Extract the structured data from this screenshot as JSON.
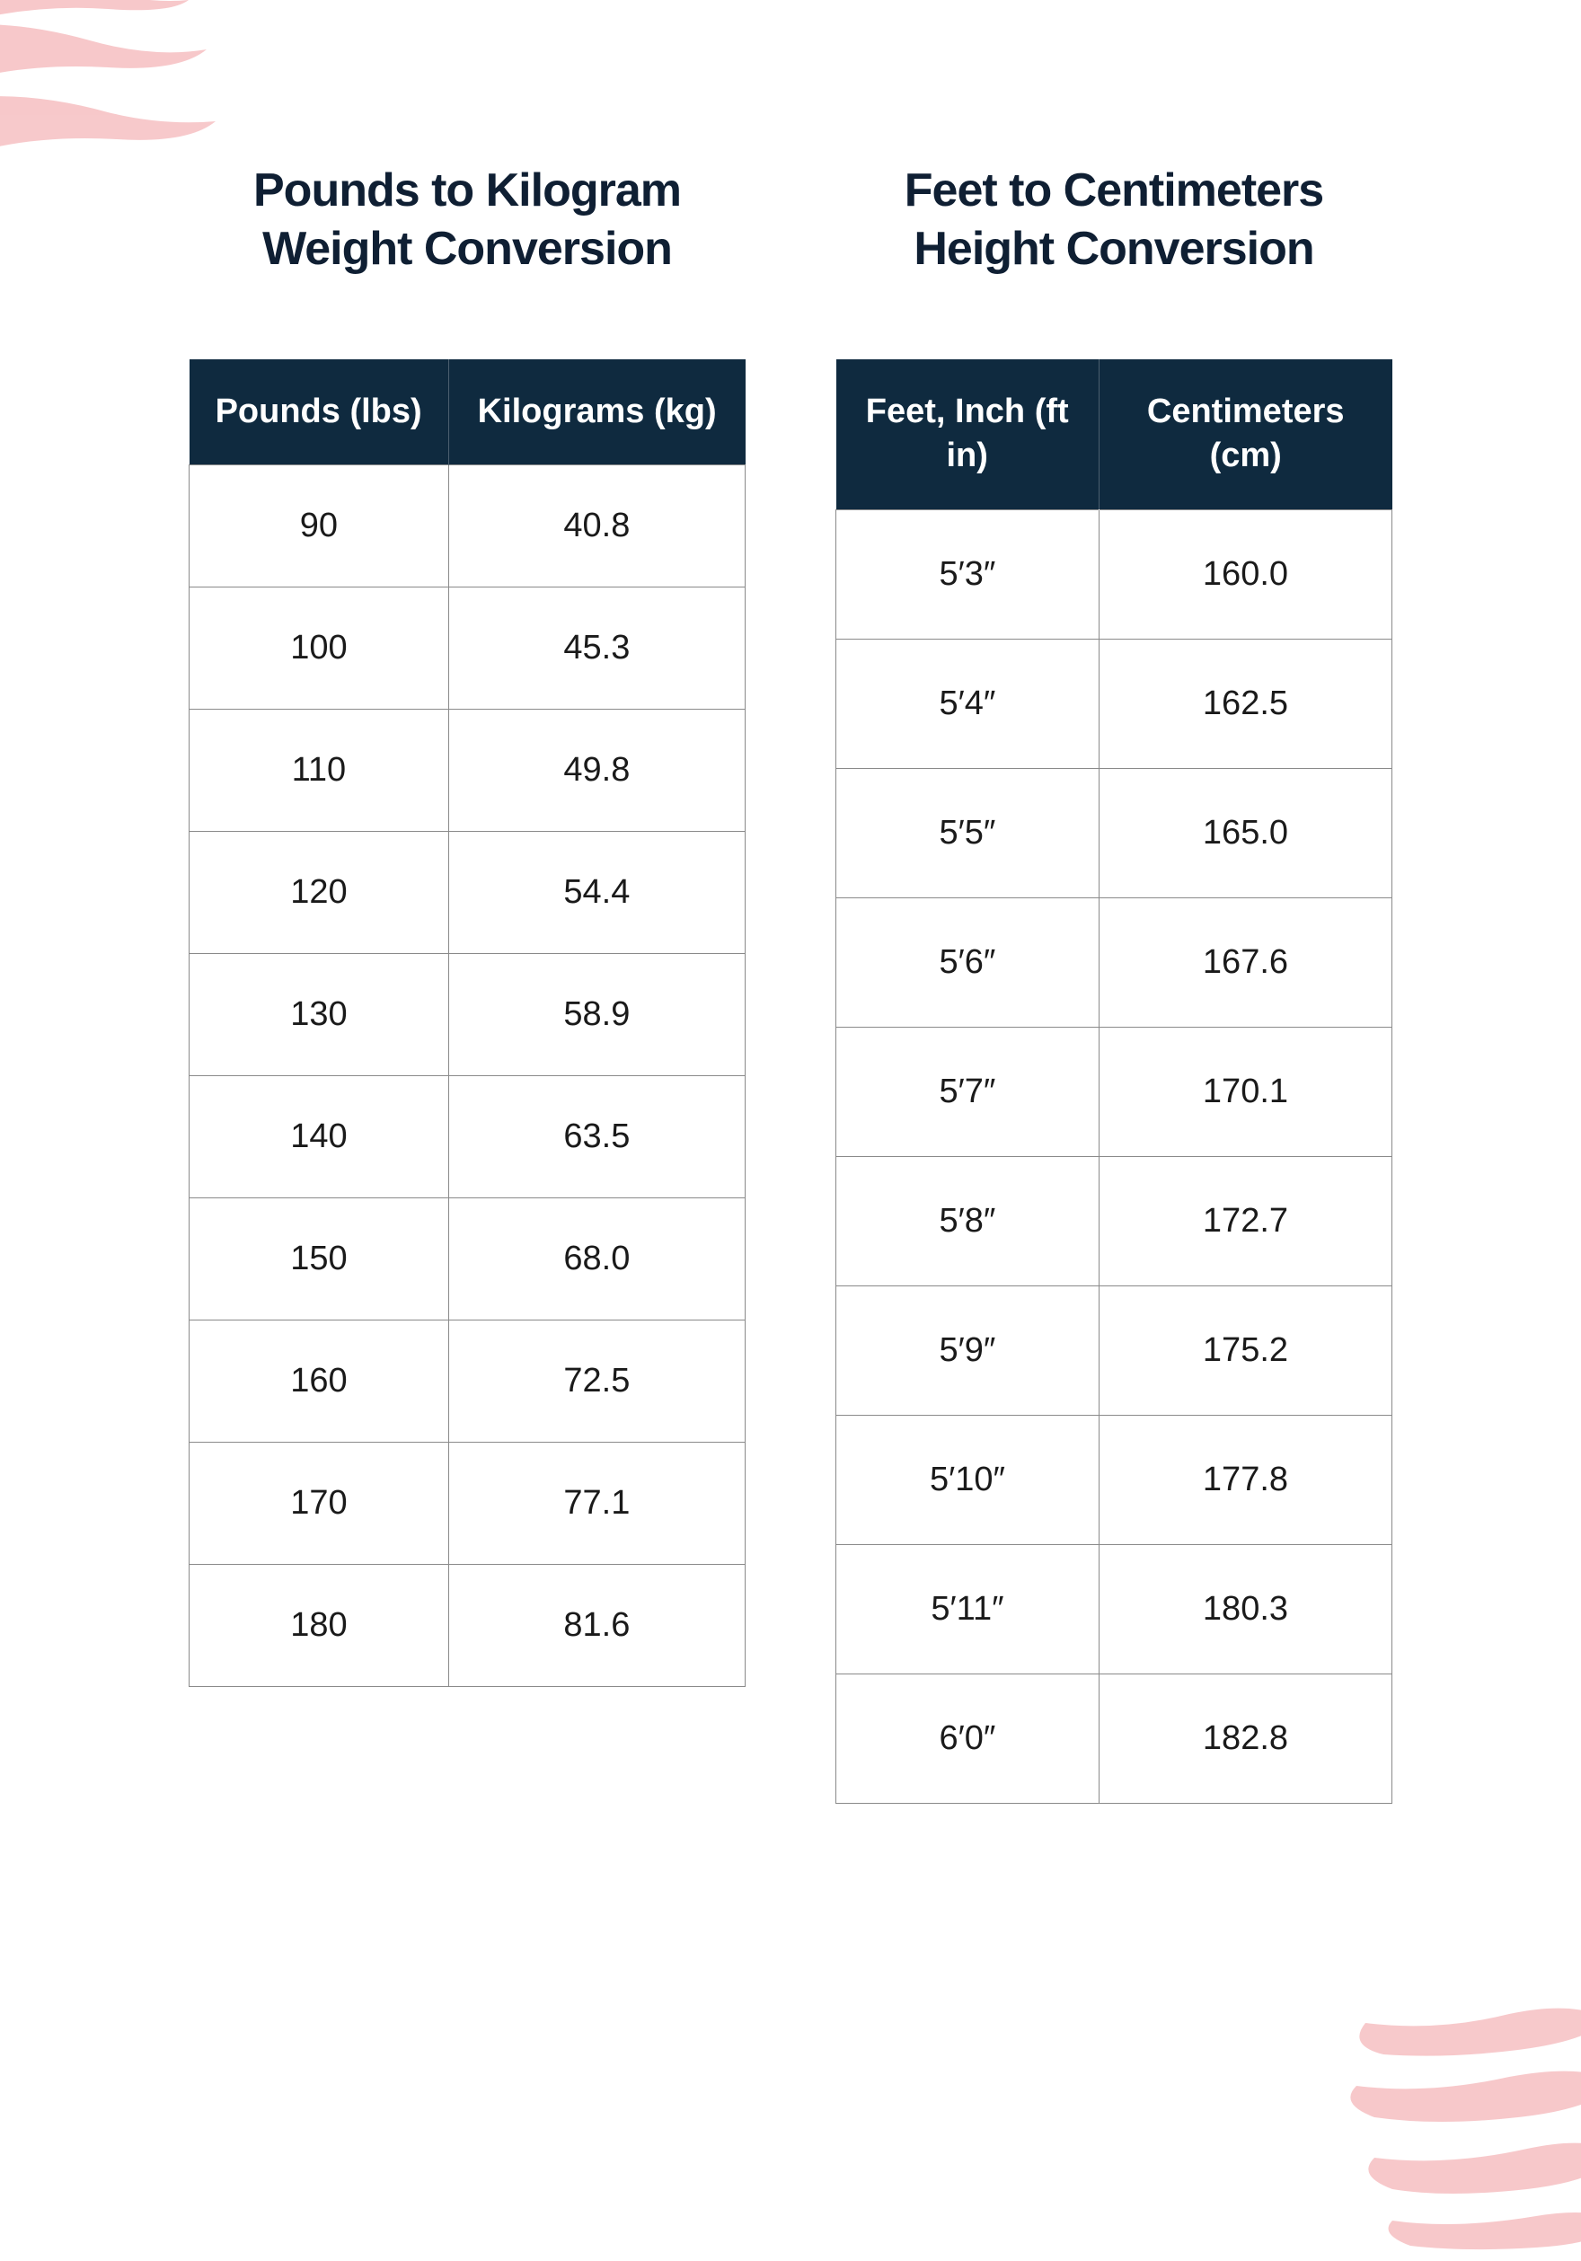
{
  "style": {
    "page_bg": "#ffffff",
    "header_bg": "#0f2a3f",
    "header_text_color": "#ffffff",
    "cell_border_color": "#8a8a8a",
    "title_color": "#0f1f33",
    "cell_text_color": "#1a1a1a",
    "brush_color": "#f7c6c8",
    "title_fontsize": 52,
    "header_fontsize": 38,
    "cell_fontsize": 38
  },
  "weight_table": {
    "title": "Pounds to Kilogram Weight Conversion",
    "columns": [
      "Pounds (lbs)",
      "Kilograms (kg)"
    ],
    "rows": [
      [
        "90",
        "40.8"
      ],
      [
        "100",
        "45.3"
      ],
      [
        "110",
        "49.8"
      ],
      [
        "120",
        "54.4"
      ],
      [
        "130",
        "58.9"
      ],
      [
        "140",
        "63.5"
      ],
      [
        "150",
        "68.0"
      ],
      [
        "160",
        "72.5"
      ],
      [
        "170",
        "77.1"
      ],
      [
        "180",
        "81.6"
      ]
    ]
  },
  "height_table": {
    "title": "Feet to Centimeters Height Conversion",
    "columns": [
      "Feet, Inch (ft in)",
      "Centimeters (cm)"
    ],
    "rows": [
      [
        "5′3″",
        "160.0"
      ],
      [
        "5′4″",
        "162.5"
      ],
      [
        "5′5″",
        "165.0"
      ],
      [
        "5′6″",
        "167.6"
      ],
      [
        "5′7″",
        "170.1"
      ],
      [
        "5′8″",
        "172.7"
      ],
      [
        "5′9″",
        "175.2"
      ],
      [
        "5′10″",
        "177.8"
      ],
      [
        "5′11″",
        "180.3"
      ],
      [
        "6′0″",
        "182.8"
      ]
    ]
  }
}
